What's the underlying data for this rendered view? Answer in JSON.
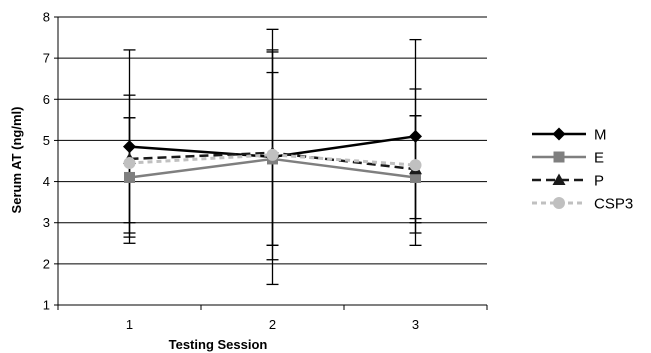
{
  "chart_data": {
    "type": "line",
    "title": "",
    "xlabel": "Testing Session",
    "ylabel": "Serum AT (ng/ml)",
    "categories": [
      "1",
      "2",
      "3"
    ],
    "ylim": [
      1,
      8
    ],
    "yticks": [
      "1",
      "2",
      "3",
      "4",
      "5",
      "6",
      "7",
      "8"
    ],
    "grid": "horizontal",
    "legend_position": "right",
    "series": [
      {
        "name": "M",
        "values": [
          4.85,
          4.6,
          5.1
        ],
        "error_low": [
          2.5,
          1.5,
          2.75
        ],
        "error_high": [
          7.2,
          7.7,
          7.45
        ],
        "color": "#000000",
        "line_style": "solid",
        "marker": "diamond"
      },
      {
        "name": "E",
        "values": [
          4.1,
          4.55,
          4.1
        ],
        "error_low": [
          3.0,
          2.1,
          3.0
        ],
        "error_high": [
          5.55,
          7.15,
          5.6
        ],
        "color": "#7f7f7f",
        "line_style": "solid",
        "marker": "square"
      },
      {
        "name": "P",
        "values": [
          4.55,
          4.7,
          4.3
        ],
        "error_low": [
          2.65,
          2.45,
          2.45
        ],
        "error_high": [
          6.1,
          7.2,
          6.25
        ],
        "color": "#1a1a1a",
        "line_style": "dashed",
        "marker": "triangle"
      },
      {
        "name": "CSP3",
        "values": [
          4.45,
          4.65,
          4.4
        ],
        "error_low": [
          2.75,
          2.45,
          3.1
        ],
        "error_high": [
          5.55,
          6.65,
          5.6
        ],
        "color": "#c0c0c0",
        "line_style": "dotted",
        "marker": "circle"
      }
    ]
  }
}
